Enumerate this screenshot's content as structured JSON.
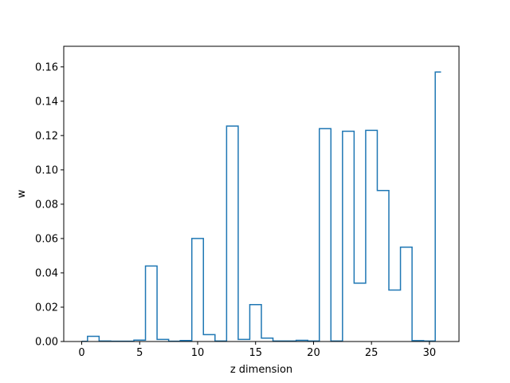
{
  "chart_data": {
    "type": "line",
    "drawstyle": "steps-mid",
    "title": "",
    "xlabel": "z dimension",
    "ylabel": "w",
    "xlim": [
      -1.55,
      32.55
    ],
    "ylim": [
      0,
      0.172
    ],
    "xticks": [
      0,
      5,
      10,
      15,
      20,
      25,
      30
    ],
    "yticks": [
      "0.00",
      "0.02",
      "0.04",
      "0.06",
      "0.08",
      "0.10",
      "0.12",
      "0.14",
      "0.16"
    ],
    "grid": false,
    "legend": "none",
    "series_color": "#1f77b4",
    "x": [
      0,
      1,
      2,
      3,
      4,
      5,
      6,
      7,
      8,
      9,
      10,
      11,
      12,
      13,
      14,
      15,
      16,
      17,
      18,
      19,
      20,
      21,
      22,
      23,
      24,
      25,
      26,
      27,
      28,
      29,
      30,
      31
    ],
    "y": [
      0.0001,
      0.003,
      0.0003,
      0.0002,
      0.0002,
      0.0008,
      0.044,
      0.0012,
      0.0002,
      0.0006,
      0.06,
      0.004,
      0.0003,
      0.1255,
      0.0012,
      0.0215,
      0.002,
      0.0003,
      0.0003,
      0.0007,
      0.0003,
      0.124,
      0.0003,
      0.1225,
      0.034,
      0.123,
      0.088,
      0.03,
      0.055,
      0.0005,
      0.0003,
      0.157
    ]
  }
}
